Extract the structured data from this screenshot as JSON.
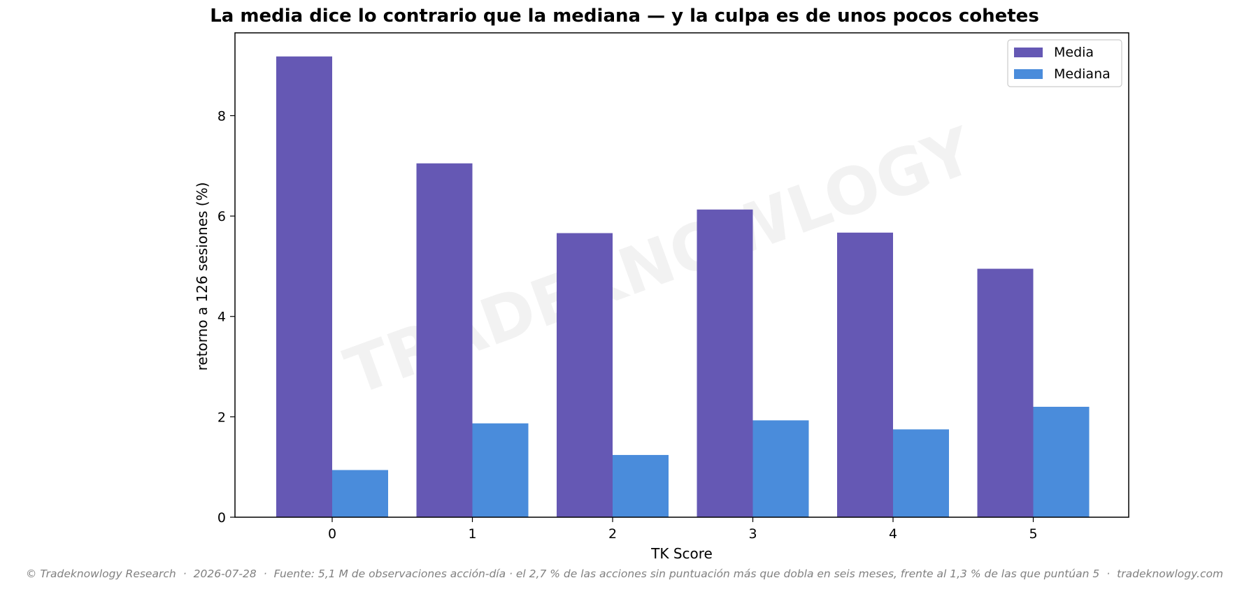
{
  "chart_data": {
    "type": "bar",
    "title": "La media dice lo contrario que la mediana — y la culpa es de unos pocos cohetes",
    "xlabel": "TK Score",
    "ylabel": "retorno a 126 sesiones (%)",
    "categories": [
      "0",
      "1",
      "2",
      "3",
      "4",
      "5"
    ],
    "series": [
      {
        "name": "Media",
        "color": "#6558b4",
        "values": [
          9.18,
          7.05,
          5.66,
          6.13,
          5.67,
          4.95
        ]
      },
      {
        "name": "Mediana",
        "color": "#4a8cdb",
        "values": [
          0.94,
          1.87,
          1.24,
          1.93,
          1.75,
          2.2
        ]
      }
    ],
    "ylim": [
      0,
      9.65
    ],
    "yticks": [
      "0",
      "2",
      "4",
      "6",
      "8"
    ],
    "grid": false,
    "legend": "top-right",
    "watermark": "TRADEKNOWLOGY"
  },
  "footer": {
    "copyright": "© Tradeknowlogy Research",
    "date": "2026-07-28",
    "source": "Fuente: 5,1 M de observaciones acción-día · el 2,7 % de las acciones sin puntuación más que dobla en seis meses, frente al 1,3 % de las que puntúan 5",
    "site": "tradeknowlogy.com",
    "separator": "·"
  }
}
